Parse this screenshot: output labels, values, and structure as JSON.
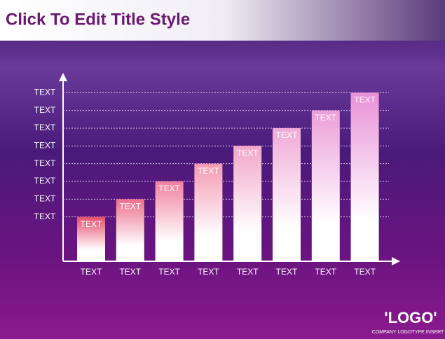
{
  "chart_data": {
    "type": "bar",
    "title": "Click To Edit Title Style",
    "categories": [
      "TEXT",
      "TEXT",
      "TEXT",
      "TEXT",
      "TEXT",
      "TEXT",
      "TEXT",
      "TEXT"
    ],
    "values": [
      25,
      35,
      45,
      55,
      65,
      75,
      85,
      95
    ],
    "value_labels": [
      "TEXT",
      "TEXT",
      "TEXT",
      "TEXT",
      "TEXT",
      "TEXT",
      "TEXT",
      "TEXT"
    ],
    "colors": [
      "#e4506e",
      "#ec6f8c",
      "#f081a0",
      "#f39ab2",
      "#f2a6c6",
      "#f0aad6",
      "#ec9ed8",
      "#e890d6"
    ],
    "ylim": [
      0,
      105
    ],
    "yticks": [
      {
        "value": 25,
        "label": "TEXT"
      },
      {
        "value": 35,
        "label": "TEXT"
      },
      {
        "value": 45,
        "label": "TEXT"
      },
      {
        "value": 55,
        "label": "TEXT"
      },
      {
        "value": 65,
        "label": "TEXT"
      },
      {
        "value": 75,
        "label": "TEXT"
      },
      {
        "value": 85,
        "label": "TEXT"
      },
      {
        "value": 95,
        "label": "TEXT"
      }
    ],
    "grid": true
  },
  "logo": {
    "text": "'LOGO'",
    "caption": "COMPANY LOGOTYPE INSERT"
  }
}
